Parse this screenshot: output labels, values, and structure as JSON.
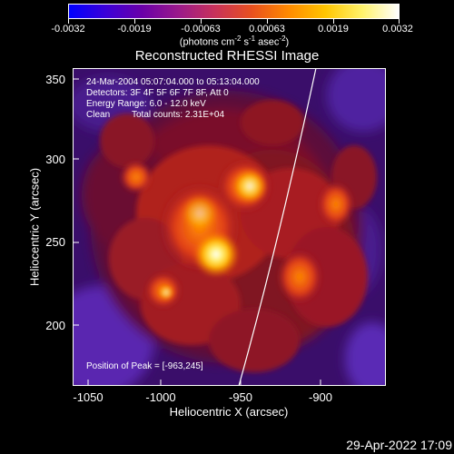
{
  "colorbar": {
    "tick_labels": [
      "-0.0032",
      "-0.0019",
      "-0.00063",
      "0.00063",
      "0.0019",
      "0.0032"
    ],
    "units_main": "(photons cm",
    "units_exp1": "-2",
    "units_mid": " s",
    "units_exp2": "-1",
    "units_mid2": " asec",
    "units_exp3": "-2",
    "units_end": ")",
    "colors": [
      "#0000ff",
      "#3b00d8",
      "#6a00a8",
      "#9b1a8a",
      "#c8325a",
      "#e8501e",
      "#ff8a00",
      "#ffc500",
      "#fff26a",
      "#ffffff"
    ]
  },
  "title": "Reconstructed RHESSI Image",
  "annotations": {
    "time_range": "24-Mar-2004 05:07:04.000 to 05:13:04.000",
    "detectors": "Detectors: 3F 4F 5F 6F 7F 8F, Att 0",
    "energy": "Energy Range: 6.0 - 12.0 keV",
    "clean_label": "Clean",
    "total_counts": "Total counts: 2.31E+04",
    "peak": "Position of Peak = [-963,245]"
  },
  "axes": {
    "xlabel": "Heliocentric X (arcsec)",
    "ylabel": "Heliocentric Y (arcsec)",
    "xticks": [
      "-1050",
      "-1000",
      "-950",
      "-900"
    ],
    "yticks": [
      "350",
      "300",
      "250",
      "200"
    ]
  },
  "timestamp": "29-Apr-2022 17:09"
}
